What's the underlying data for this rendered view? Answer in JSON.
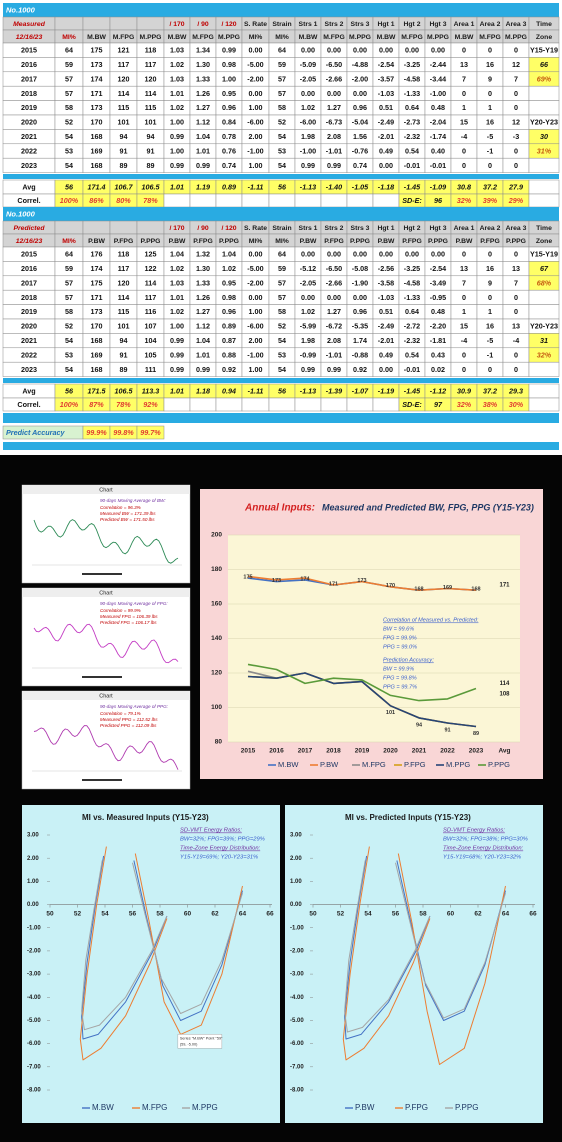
{
  "measured_table": {
    "banner": "No.1000",
    "header": [
      [
        "Measured",
        null,
        null,
        null,
        null,
        "/ 170",
        "/ 90",
        "/ 120",
        "S. Rate",
        "Strain",
        "Strs 1",
        "Strs 2",
        "Strs 3",
        "Hgt 1",
        "Hgt 2",
        "Hgt 3",
        "Area 1",
        "Area 2",
        "Area 3",
        "Time"
      ],
      [
        "12/16/23",
        "MI%",
        "M.BW",
        "M.FPG",
        "M.PPG",
        "M.BW",
        "M.FPG",
        "M.PPG",
        "MI%",
        "MI%",
        "M.BW",
        "M.FPG",
        "M.PPG",
        "M.BW",
        "M.FPG",
        "M.PPG",
        "M.BW",
        "M.FPG",
        "M.PPG",
        "Zone"
      ]
    ],
    "rows": [
      [
        "2015",
        "64",
        "175",
        "121",
        "118",
        "1.03",
        "1.34",
        "0.99",
        "0.00",
        "64",
        "0.00",
        "0.00",
        "0.00",
        "0.00",
        "0.00",
        "0.00",
        "0",
        "0",
        "0",
        "Y15-Y19"
      ],
      [
        "2016",
        "59",
        "173",
        "117",
        "117",
        "1.02",
        "1.30",
        "0.98",
        "-5.00",
        "59",
        "-5.09",
        "-6.50",
        "-4.88",
        "-2.54",
        "-3.25",
        "-2.44",
        "13",
        "16",
        "12",
        "66"
      ],
      [
        "2017",
        "57",
        "174",
        "120",
        "120",
        "1.03",
        "1.33",
        "1.00",
        "-2.00",
        "57",
        "-2.05",
        "-2.66",
        "-2.00",
        "-3.57",
        "-4.58",
        "-3.44",
        "7",
        "9",
        "7",
        "69%"
      ],
      [
        "2018",
        "57",
        "171",
        "114",
        "114",
        "1.01",
        "1.26",
        "0.95",
        "0.00",
        "57",
        "0.00",
        "0.00",
        "0.00",
        "-1.03",
        "-1.33",
        "-1.00",
        "0",
        "0",
        "0",
        null
      ],
      [
        "2019",
        "58",
        "173",
        "115",
        "115",
        "1.02",
        "1.27",
        "0.96",
        "1.00",
        "58",
        "1.02",
        "1.27",
        "0.96",
        "0.51",
        "0.64",
        "0.48",
        "1",
        "1",
        "0",
        null
      ],
      [
        "2020",
        "52",
        "170",
        "101",
        "101",
        "1.00",
        "1.12",
        "0.84",
        "-6.00",
        "52",
        "-6.00",
        "-6.73",
        "-5.04",
        "-2.49",
        "-2.73",
        "-2.04",
        "15",
        "16",
        "12",
        "Y20-Y23"
      ],
      [
        "2021",
        "54",
        "168",
        "94",
        "94",
        "0.99",
        "1.04",
        "0.78",
        "2.00",
        "54",
        "1.98",
        "2.08",
        "1.56",
        "-2.01",
        "-2.32",
        "-1.74",
        "-4",
        "-5",
        "-3",
        "30"
      ],
      [
        "2022",
        "53",
        "169",
        "91",
        "91",
        "1.00",
        "1.01",
        "0.76",
        "-1.00",
        "53",
        "-1.00",
        "-1.01",
        "-0.76",
        "0.49",
        "0.54",
        "0.40",
        "0",
        "-1",
        "0",
        "31%"
      ],
      [
        "2023",
        "54",
        "168",
        "89",
        "89",
        "0.99",
        "0.99",
        "0.74",
        "1.00",
        "54",
        "0.99",
        "0.99",
        "0.74",
        "0.00",
        "-0.01",
        "-0.01",
        "0",
        "0",
        "0",
        null
      ]
    ],
    "avg": [
      "Avg",
      "56",
      "171.4",
      "106.7",
      "106.5",
      "1.01",
      "1.19",
      "0.89",
      "-1.11",
      "56",
      "-1.13",
      "-1.40",
      "-1.05",
      "-1.18",
      "-1.45",
      "-1.09",
      "30.8",
      "37.2",
      "27.9",
      null
    ],
    "correl": [
      "Correl.",
      "100%",
      "86%",
      "80%",
      "78%",
      null,
      null,
      null,
      null,
      null,
      null,
      null,
      null,
      null,
      "SD-E:",
      "96",
      "32%",
      "39%",
      "29%",
      null
    ]
  },
  "predicted_table": {
    "banner": "No.1000",
    "header": [
      [
        "Predicted",
        null,
        null,
        null,
        null,
        "/ 170",
        "/ 90",
        "/ 120",
        "S. Rate",
        "Strain",
        "Strs 1",
        "Strs 2",
        "Strs 3",
        "Hgt 1",
        "Hgt 2",
        "Hgt 3",
        "Area 1",
        "Area 2",
        "Area 3",
        "Time"
      ],
      [
        "12/16/23",
        "MI%",
        "P.BW",
        "P.FPG",
        "P.PPG",
        "P.BW",
        "P.FPG",
        "P.PPG",
        "MI%",
        "MI%",
        "P.BW",
        "P.FPG",
        "P.PPG",
        "P.BW",
        "P.FPG",
        "P.PPG",
        "P.BW",
        "P.FPG",
        "P.PPG",
        "Zone"
      ]
    ],
    "rows": [
      [
        "2015",
        "64",
        "176",
        "118",
        "125",
        "1.04",
        "1.32",
        "1.04",
        "0.00",
        "64",
        "0.00",
        "0.00",
        "0.00",
        "0.00",
        "0.00",
        "0.00",
        "0",
        "0",
        "0",
        "Y15-Y19"
      ],
      [
        "2016",
        "59",
        "174",
        "117",
        "122",
        "1.02",
        "1.30",
        "1.02",
        "-5.00",
        "59",
        "-5.12",
        "-6.50",
        "-5.08",
        "-2.56",
        "-3.25",
        "-2.54",
        "13",
        "16",
        "13",
        "67"
      ],
      [
        "2017",
        "57",
        "175",
        "120",
        "114",
        "1.03",
        "1.33",
        "0.95",
        "-2.00",
        "57",
        "-2.05",
        "-2.66",
        "-1.90",
        "-3.58",
        "-4.58",
        "-3.49",
        "7",
        "9",
        "7",
        "68%"
      ],
      [
        "2018",
        "57",
        "171",
        "114",
        "117",
        "1.01",
        "1.26",
        "0.98",
        "0.00",
        "57",
        "0.00",
        "0.00",
        "0.00",
        "-1.03",
        "-1.33",
        "-0.95",
        "0",
        "0",
        "0",
        null
      ],
      [
        "2019",
        "58",
        "173",
        "115",
        "116",
        "1.02",
        "1.27",
        "0.96",
        "1.00",
        "58",
        "1.02",
        "1.27",
        "0.96",
        "0.51",
        "0.64",
        "0.48",
        "1",
        "1",
        "0",
        null
      ],
      [
        "2020",
        "52",
        "170",
        "101",
        "107",
        "1.00",
        "1.12",
        "0.89",
        "-6.00",
        "52",
        "-5.99",
        "-6.72",
        "-5.35",
        "-2.49",
        "-2.72",
        "-2.20",
        "15",
        "16",
        "13",
        "Y20-Y23"
      ],
      [
        "2021",
        "54",
        "168",
        "94",
        "104",
        "0.99",
        "1.04",
        "0.87",
        "2.00",
        "54",
        "1.98",
        "2.08",
        "1.74",
        "-2.01",
        "-2.32",
        "-1.81",
        "-4",
        "-5",
        "-4",
        "31"
      ],
      [
        "2022",
        "53",
        "169",
        "91",
        "105",
        "0.99",
        "1.01",
        "0.88",
        "-1.00",
        "53",
        "-0.99",
        "-1.01",
        "-0.88",
        "0.49",
        "0.54",
        "0.43",
        "0",
        "-1",
        "0",
        "32%"
      ],
      [
        "2023",
        "54",
        "168",
        "89",
        "111",
        "0.99",
        "0.99",
        "0.92",
        "1.00",
        "54",
        "0.99",
        "0.99",
        "0.92",
        "0.00",
        "-0.01",
        "0.02",
        "0",
        "0",
        "0",
        null
      ]
    ],
    "avg": [
      "Avg",
      "56",
      "171.5",
      "106.5",
      "113.3",
      "1.01",
      "1.18",
      "0.94",
      "-1.11",
      "56",
      "-1.13",
      "-1.39",
      "-1.07",
      "-1.19",
      "-1.45",
      "-1.12",
      "30.9",
      "37.2",
      "29.3",
      null
    ],
    "correl": [
      "Correl.",
      "100%",
      "87%",
      "78%",
      "92%",
      null,
      null,
      null,
      null,
      null,
      null,
      null,
      null,
      null,
      "SD-E:",
      "97",
      "32%",
      "38%",
      "30%",
      null
    ]
  },
  "predict_accuracy": {
    "label": "Predict Accuracy",
    "values": [
      "99.9%",
      "99.8%",
      "99.7%"
    ]
  },
  "moving_average_panels": [
    {
      "title": "Chart",
      "heading": "90-days Moving Average of BW:",
      "lines": [
        "Correlation = 96.3%",
        "Measured BW = 171.39 lbs",
        "Predicted BW = 171.50 lbs"
      ]
    },
    {
      "title": "Chart",
      "heading": "90-days Moving Average of FPG:",
      "lines": [
        "Correlation = 99.9%",
        "Measured FPG = 106.39 lbs",
        "Predicted FPG = 106.17 lbs"
      ]
    },
    {
      "title": "Chart",
      "heading": "90-days Moving Average of PPG:",
      "lines": [
        "Correlation = 79.1%",
        "Measured PPG = 112.52 lbs",
        "Predicted PPG = 112.09 lbs"
      ]
    }
  ],
  "annual_chart": {
    "type": "line",
    "title_prefix": "Annual Inputs:",
    "title": "Measured and Predicted BW, FPG, PPG  (Y15-Y23)",
    "categories": [
      "2015",
      "2016",
      "2017",
      "2018",
      "2019",
      "2020",
      "2021",
      "2022",
      "2023",
      "Avg"
    ],
    "series": [
      {
        "name": "M.BW",
        "color": "#4472c4",
        "values": [
          175,
          173,
          174,
          171,
          173,
          170,
          168,
          169,
          168,
          null
        ]
      },
      {
        "name": "P.BW",
        "color": "#ed7d31",
        "values": [
          176,
          174,
          175,
          171,
          173,
          170,
          168,
          169,
          168,
          null
        ]
      },
      {
        "name": "M.FPG",
        "color": "#8c8c8c",
        "values": [
          121,
          117,
          120,
          114,
          115,
          101,
          94,
          91,
          89,
          null
        ]
      },
      {
        "name": "P.FPG",
        "color": "#d4a017",
        "values": [
          118,
          117,
          120,
          114,
          115,
          101,
          94,
          91,
          89,
          null
        ]
      },
      {
        "name": "M.PPG",
        "color": "#264478",
        "values": [
          118,
          117,
          120,
          114,
          115,
          101,
          94,
          91,
          89,
          null
        ]
      },
      {
        "name": "P.PPG",
        "color": "#5a9a3a",
        "values": [
          125,
          122,
          114,
          117,
          116,
          107,
          104,
          105,
          111,
          null
        ]
      }
    ],
    "avg_labels": [
      171,
      114,
      108
    ],
    "ylim": [
      80,
      200
    ],
    "yticks": [
      80,
      100,
      120,
      140,
      160,
      180,
      200
    ],
    "grid": true,
    "annotations": [
      "Correlation of Measured vs. Predicted:",
      "BW = 99.6%",
      "FPG = 99.9%",
      "PPG = 99.0%",
      "Prediction Accuracy:",
      "BW = 99.9%",
      "FPG = 99.8%",
      "PPG = 99.7%"
    ]
  },
  "mi_charts": [
    {
      "type": "line",
      "title": "MI vs. Measured Inputs  (Y15-Y23)",
      "xlim": [
        50,
        66
      ],
      "xticks": [
        50,
        52,
        54,
        56,
        58,
        60,
        62,
        64,
        66
      ],
      "ylim": [
        -8,
        3
      ],
      "yticks": [
        {
          "value": 3,
          "label": "3.00"
        },
        {
          "value": 2,
          "label": "2.00"
        },
        {
          "value": 1,
          "label": "1.00"
        },
        {
          "value": 0,
          "label": "0.00"
        },
        {
          "value": -1,
          "label": "-1.00"
        },
        {
          "value": -2,
          "label": "-2.00"
        },
        {
          "value": -3,
          "label": "-3.00"
        },
        {
          "value": -4,
          "label": "-4.00"
        },
        {
          "value": -5,
          "label": "-5.00"
        },
        {
          "value": -6,
          "label": "-6.00"
        },
        {
          "value": -7,
          "label": "-7.00"
        },
        {
          "value": -8,
          "label": "-8.00"
        }
      ],
      "series": [
        {
          "name": "M.BW",
          "color": "#4472c4",
          "x": [
            53.9,
            53.3,
            52.7,
            52.3,
            52.4,
            53.5,
            55.5,
            57.5,
            58.5,
            null,
            56.1,
            57.0,
            58.2,
            59.5,
            61,
            62.5,
            64
          ],
          "values": [
            2.1,
            0,
            -2.5,
            -4.8,
            -5.8,
            -5.6,
            -4.2,
            -2,
            -0.5,
            null,
            1.9,
            -0.5,
            -3.5,
            -5.0,
            -4.6,
            -2.6,
            0.6
          ]
        },
        {
          "name": "M.FPG",
          "color": "#ed7d31",
          "x": [
            54.1,
            53.4,
            52.7,
            52.2,
            52.4,
            53.7,
            55.5,
            57.3,
            58.5,
            null,
            56.2,
            57.2,
            58.3,
            59.5,
            61,
            62.5,
            64
          ],
          "values": [
            2.5,
            0,
            -3,
            -5.8,
            -6.7,
            -6.2,
            -4.8,
            -2.5,
            -0.6,
            null,
            2.2,
            -0.7,
            -4.2,
            -5.6,
            -5.2,
            -3,
            0.8
          ]
        },
        {
          "name": "M.PPG",
          "color": "#a5a5a5",
          "x": [
            53.8,
            53.2,
            52.6,
            52.3,
            52.5,
            53.6,
            55.5,
            57.4,
            58.5,
            null,
            56.0,
            56.9,
            58.1,
            59.5,
            61,
            62.5,
            64
          ],
          "values": [
            1.9,
            -0.2,
            -2.4,
            -4.6,
            -5.4,
            -5.2,
            -4,
            -2,
            -0.5,
            null,
            1.8,
            -0.4,
            -3.2,
            -4.7,
            -4.3,
            -2.4,
            0.5
          ]
        }
      ],
      "annotations": [
        "SD-VMT Energy Ratios:",
        "BW=32%;  FPG=39%;  PPG=29%",
        "Time-Zone Energy Distribution:",
        "Y15-Y19=69%;  Y20-Y23=31%"
      ],
      "tooltip": [
        "Series \"M.BW\" Point \"59\"",
        "(59, -5.00)"
      ]
    },
    {
      "type": "line",
      "title": "MI vs. Predicted Inputs  (Y15-Y23)",
      "xlim": [
        50,
        66
      ],
      "xticks": [
        50,
        52,
        54,
        56,
        58,
        60,
        62,
        64,
        66
      ],
      "ylim": [
        -8,
        3
      ],
      "yticks": [
        {
          "value": 3,
          "label": "3.00"
        },
        {
          "value": 2,
          "label": "2.00"
        },
        {
          "value": 1,
          "label": "1.00"
        },
        {
          "value": 0,
          "label": "0.00"
        },
        {
          "value": -1,
          "label": "-1.00"
        },
        {
          "value": -2,
          "label": "-2.00"
        },
        {
          "value": -3,
          "label": "-3.00"
        },
        {
          "value": -4,
          "label": "-4.00"
        },
        {
          "value": -5,
          "label": "-5.00"
        },
        {
          "value": -6,
          "label": "-6.00"
        },
        {
          "value": -7,
          "label": "-7.00"
        },
        {
          "value": -8,
          "label": "-8.00"
        }
      ],
      "series": [
        {
          "name": "P.BW",
          "color": "#4472c4",
          "x": [
            53.9,
            53.3,
            52.7,
            52.3,
            52.4,
            53.5,
            55.5,
            57.5,
            58.5,
            null,
            56.1,
            57.0,
            58.2,
            59.5,
            61,
            62.5,
            64
          ],
          "values": [
            2.1,
            0,
            -2.5,
            -4.8,
            -5.8,
            -5.6,
            -4.2,
            -2,
            -0.5,
            null,
            1.9,
            -0.5,
            -3.5,
            -5.0,
            -4.6,
            -2.6,
            0.6
          ]
        },
        {
          "name": "P.FPG",
          "color": "#ed7d31",
          "x": [
            54.1,
            53.4,
            52.7,
            52.2,
            52.4,
            53.7,
            55.5,
            57.3,
            58.5,
            null,
            56.2,
            57.2,
            58.3,
            59.2,
            61,
            62.5,
            64
          ],
          "values": [
            2.5,
            0,
            -3,
            -5.8,
            -6.7,
            -6.2,
            -4.8,
            -2.5,
            -0.6,
            null,
            2.2,
            -0.8,
            -4.6,
            -6.9,
            -6.2,
            -3.4,
            0.8
          ]
        },
        {
          "name": "P.PPG",
          "color": "#a5a5a5",
          "x": [
            53.8,
            53.2,
            52.6,
            52.3,
            52.5,
            53.6,
            55.5,
            57.4,
            58.5,
            null,
            56.0,
            56.9,
            58.1,
            59.5,
            61,
            62.5,
            64
          ],
          "values": [
            1.9,
            -0.2,
            -2.4,
            -4.6,
            -5.5,
            -5.3,
            -4.1,
            -2,
            -0.5,
            null,
            1.8,
            -0.4,
            -3.3,
            -4.9,
            -4.5,
            -2.5,
            0.5
          ]
        }
      ],
      "annotations": [
        "SD-VMT Energy Ratios:",
        "BW=32%;  FPG=38%;  PPG=30%",
        "Time-Zone Energy Distribution:",
        "Y15-Y19=68%;  Y20-Y23=32%"
      ]
    }
  ]
}
